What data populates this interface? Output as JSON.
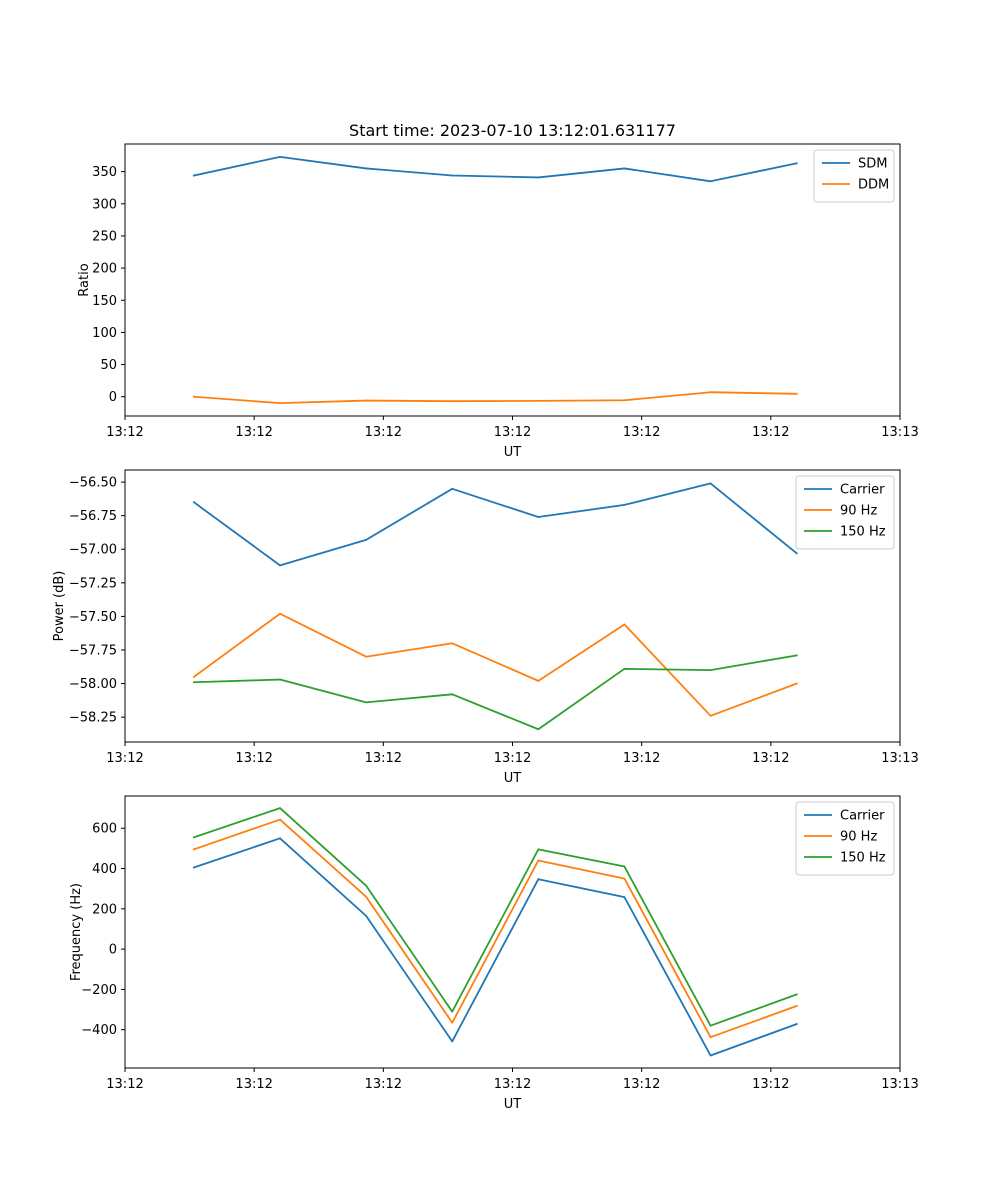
{
  "chart_data": [
    {
      "type": "line",
      "title": "Start time: 2023-07-10 13:12:01.631177",
      "xlabel": "UT",
      "ylabel": "Ratio",
      "x": [
        1,
        2,
        3,
        4,
        5,
        6,
        7,
        8
      ],
      "xlim": [
        0.2,
        9.2
      ],
      "x_ticks": [
        0.2,
        1.7,
        3.2,
        4.7,
        6.2,
        7.7,
        9.2
      ],
      "x_tick_labels": [
        "13:12",
        "13:12",
        "13:12",
        "13:12",
        "13:12",
        "13:12",
        "13:13"
      ],
      "ylim": [
        -30,
        393
      ],
      "y_ticks": [
        0,
        50,
        100,
        150,
        200,
        250,
        300,
        350
      ],
      "y_tick_labels": [
        "0",
        "50",
        "100",
        "150",
        "200",
        "250",
        "300",
        "350"
      ],
      "legend_position": "top-right",
      "series": [
        {
          "name": "SDM",
          "color": "#1f77b4",
          "values": [
            344,
            373,
            355,
            344,
            341,
            355,
            335,
            363
          ]
        },
        {
          "name": "DDM",
          "color": "#ff7f0e",
          "values": [
            0,
            -10,
            -6,
            -7,
            -6.5,
            -5.5,
            7,
            4.5
          ]
        }
      ]
    },
    {
      "type": "line",
      "title": "",
      "xlabel": "UT",
      "ylabel": "Power (dB)",
      "x": [
        1,
        2,
        3,
        4,
        5,
        6,
        7,
        8
      ],
      "xlim": [
        0.2,
        9.2
      ],
      "x_ticks": [
        0.2,
        1.7,
        3.2,
        4.7,
        6.2,
        7.7,
        9.2
      ],
      "x_tick_labels": [
        "13:12",
        "13:12",
        "13:12",
        "13:12",
        "13:12",
        "13:12",
        "13:13"
      ],
      "ylim": [
        -58.435,
        -56.41
      ],
      "y_ticks": [
        -58.25,
        -58.0,
        -57.75,
        -57.5,
        -57.25,
        -57.0,
        -56.75,
        -56.5
      ],
      "y_tick_labels": [
        "−58.25",
        "−58.00",
        "−57.75",
        "−57.50",
        "−57.25",
        "−57.00",
        "−56.75",
        "−56.50"
      ],
      "legend_position": "top-right",
      "series": [
        {
          "name": "Carrier",
          "color": "#1f77b4",
          "values": [
            -56.65,
            -57.12,
            -56.93,
            -56.55,
            -56.76,
            -56.67,
            -56.51,
            -57.03
          ]
        },
        {
          "name": "90 Hz",
          "color": "#ff7f0e",
          "values": [
            -57.95,
            -57.48,
            -57.8,
            -57.7,
            -57.98,
            -57.56,
            -58.24,
            -58.0
          ]
        },
        {
          "name": "150 Hz",
          "color": "#2ca02c",
          "values": [
            -57.99,
            -57.97,
            -58.14,
            -58.08,
            -58.34,
            -57.89,
            -57.9,
            -57.79
          ]
        }
      ]
    },
    {
      "type": "line",
      "title": "",
      "xlabel": "UT",
      "ylabel": "Frequency (Hz)",
      "x": [
        1,
        2,
        3,
        4,
        5,
        6,
        7,
        8
      ],
      "xlim": [
        0.2,
        9.2
      ],
      "x_ticks": [
        0.2,
        1.7,
        3.2,
        4.7,
        6.2,
        7.7,
        9.2
      ],
      "x_tick_labels": [
        "13:12",
        "13:12",
        "13:12",
        "13:12",
        "13:12",
        "13:12",
        "13:13"
      ],
      "ylim": [
        -590,
        760
      ],
      "y_ticks": [
        -400,
        -200,
        0,
        200,
        400,
        600
      ],
      "y_tick_labels": [
        "−400",
        "−200",
        "0",
        "200",
        "400",
        "600"
      ],
      "legend_position": "top-right",
      "series": [
        {
          "name": "Carrier",
          "color": "#1f77b4",
          "values": [
            405,
            550,
            165,
            -458,
            347,
            258,
            -528,
            -372
          ]
        },
        {
          "name": "90 Hz",
          "color": "#ff7f0e",
          "values": [
            495,
            643,
            260,
            -365,
            440,
            350,
            -437,
            -282
          ]
        },
        {
          "name": "150 Hz",
          "color": "#2ca02c",
          "values": [
            555,
            700,
            315,
            -310,
            495,
            410,
            -380,
            -225
          ]
        }
      ]
    }
  ]
}
